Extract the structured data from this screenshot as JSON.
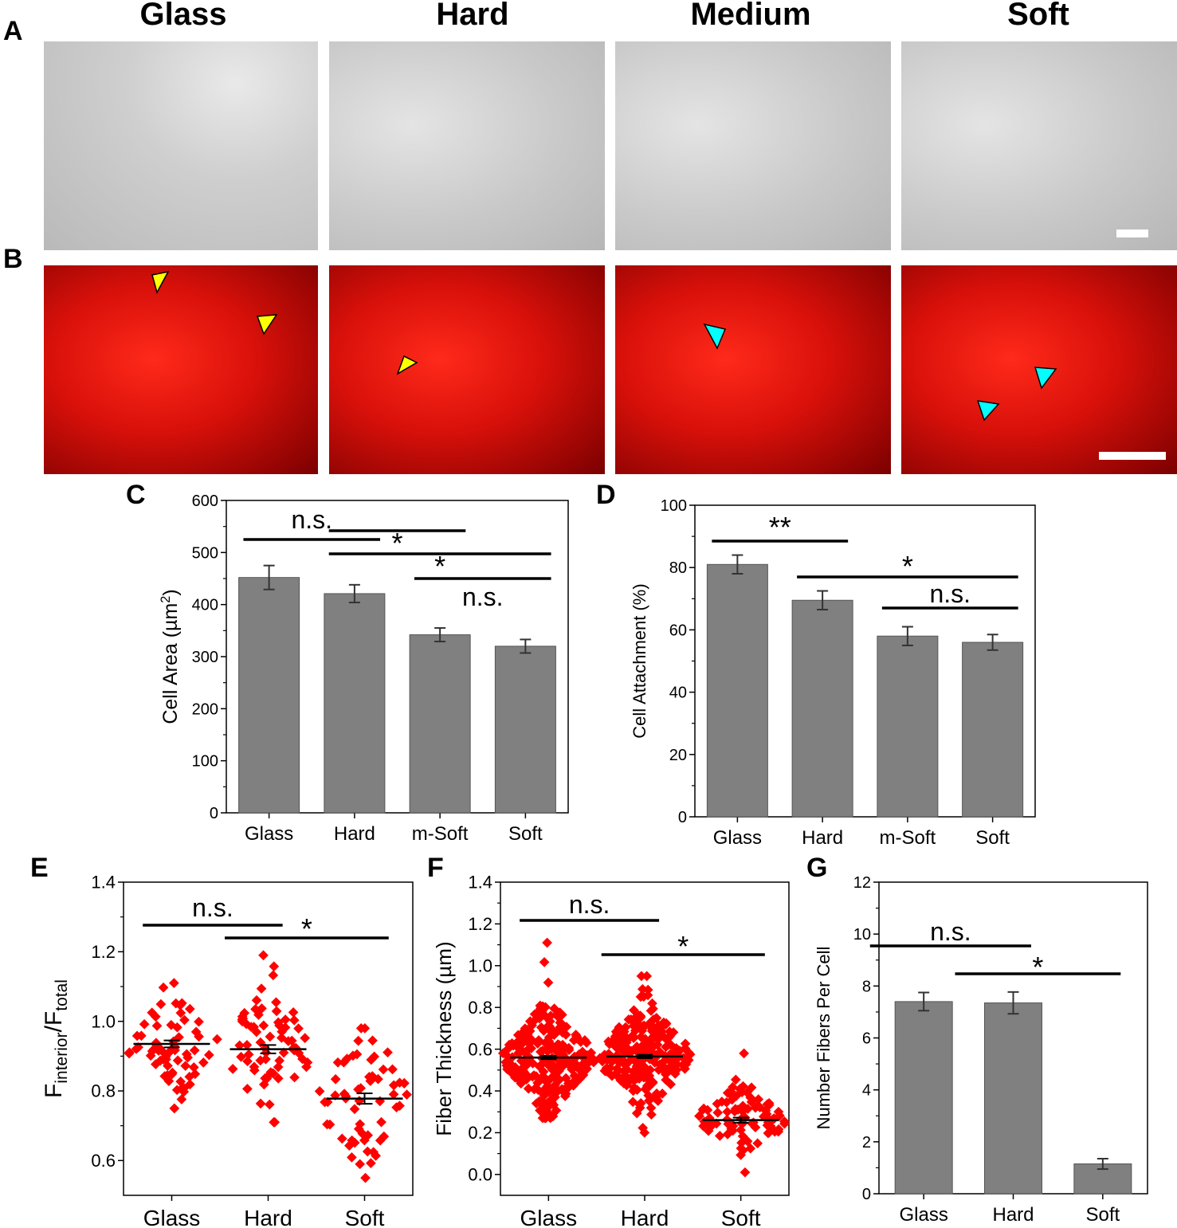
{
  "panel_letters": {
    "a": "A",
    "b": "B",
    "c": "C",
    "d": "D",
    "e": "E",
    "f": "F",
    "g": "G"
  },
  "column_headers": [
    "Glass",
    "Hard",
    "Medium",
    "Soft"
  ],
  "colors": {
    "bar": "#808080",
    "dot": "#ff0000",
    "yellow_arrow": "#ffff00",
    "cyan_arrow": "#00ffff"
  },
  "chart_data": [
    {
      "id": "C",
      "type": "bar",
      "categories": [
        "Glass",
        "Hard",
        "m-Soft",
        "Soft"
      ],
      "values": [
        452,
        421,
        342,
        320
      ],
      "errors": [
        23,
        17,
        13,
        13
      ],
      "ylabel": "Cell Area (µm²)",
      "ylabel_main": "Cell Area (µm",
      "ylabel_sup": "2",
      "ylabel_end": ")",
      "ylim": [
        0,
        600
      ],
      "yticks": [
        0,
        100,
        200,
        300,
        400,
        500,
        600
      ],
      "annotations": [
        {
          "text": "n.s.",
          "from": 0,
          "to": 1.3
        },
        {
          "text": "*",
          "from": 1,
          "to": 2.3
        },
        {
          "text": "*",
          "from": 1,
          "to": 3.3
        },
        {
          "text": "n.s.",
          "from": 2,
          "to": 3.3
        }
      ]
    },
    {
      "id": "D",
      "type": "bar",
      "categories": [
        "Glass",
        "Hard",
        "m-Soft",
        "Soft"
      ],
      "values": [
        81,
        69.5,
        58,
        56
      ],
      "errors": [
        3,
        3,
        3,
        2.5
      ],
      "ylabel": "Cell Attachment (%)",
      "ylim": [
        0,
        100
      ],
      "yticks": [
        0,
        20,
        40,
        60,
        80,
        100
      ],
      "annotations": [
        {
          "text": "**",
          "from": 0,
          "to": 1.3
        },
        {
          "text": "*",
          "from": 1,
          "to": 3.3
        },
        {
          "text": "n.s.",
          "from": 2,
          "to": 3.3
        }
      ]
    },
    {
      "id": "E",
      "type": "scatter",
      "categories": [
        "Glass",
        "Hard",
        "Soft"
      ],
      "means": [
        0.935,
        0.92,
        0.778
      ],
      "sems": [
        0.01,
        0.012,
        0.015
      ],
      "spread": [
        0.08,
        0.09,
        0.11
      ],
      "ranges": [
        [
          0.75,
          1.11
        ],
        [
          0.71,
          1.19
        ],
        [
          0.55,
          0.98
        ]
      ],
      "counts": [
        70,
        70,
        60
      ],
      "ylabel": "F_interior/F_total",
      "ylabel_main": "F",
      "ylabel_sub1": "interior",
      "ylabel_mid": "/F",
      "ylabel_sub2": "total",
      "ylim": [
        0.5,
        1.4
      ],
      "yticks": [
        0.6,
        0.8,
        1.0,
        1.2,
        1.4
      ],
      "annotations": [
        {
          "text": "n.s.",
          "from": 0,
          "to": 1.15
        },
        {
          "text": "*",
          "from": 0.85,
          "to": 2.25
        }
      ]
    },
    {
      "id": "F",
      "type": "scatter",
      "categories": [
        "Glass",
        "Hard",
        "Soft"
      ],
      "means": [
        0.56,
        0.565,
        0.26
      ],
      "sems": [
        0.008,
        0.008,
        0.012
      ],
      "spread": [
        0.12,
        0.12,
        0.08
      ],
      "ranges": [
        [
          0.27,
          1.11
        ],
        [
          0.2,
          0.95
        ],
        [
          0.01,
          0.58
        ]
      ],
      "counts": [
        260,
        260,
        90
      ],
      "ylabel": "Fiber Thickness (µm)",
      "ylim": [
        -0.1,
        1.4
      ],
      "yticks": [
        0.0,
        0.2,
        0.4,
        0.6,
        0.8,
        1.0,
        1.2,
        1.4
      ],
      "annotations": [
        {
          "text": "n.s.",
          "from": 0,
          "to": 1.15
        },
        {
          "text": "*",
          "from": 0.85,
          "to": 2.25
        }
      ]
    },
    {
      "id": "G",
      "type": "bar",
      "categories": [
        "Glass",
        "Hard",
        "Soft"
      ],
      "values": [
        7.4,
        7.35,
        1.15
      ],
      "errors": [
        0.35,
        0.42,
        0.2
      ],
      "ylabel": "Number Fibers Per Cell",
      "ylim": [
        0,
        12
      ],
      "yticks": [
        0,
        2,
        4,
        6,
        8,
        10,
        12
      ],
      "annotations": [
        {
          "text": "n.s.",
          "from": -0.3,
          "to": 1.2
        },
        {
          "text": "*",
          "from": 0.65,
          "to": 2.2
        }
      ]
    }
  ]
}
